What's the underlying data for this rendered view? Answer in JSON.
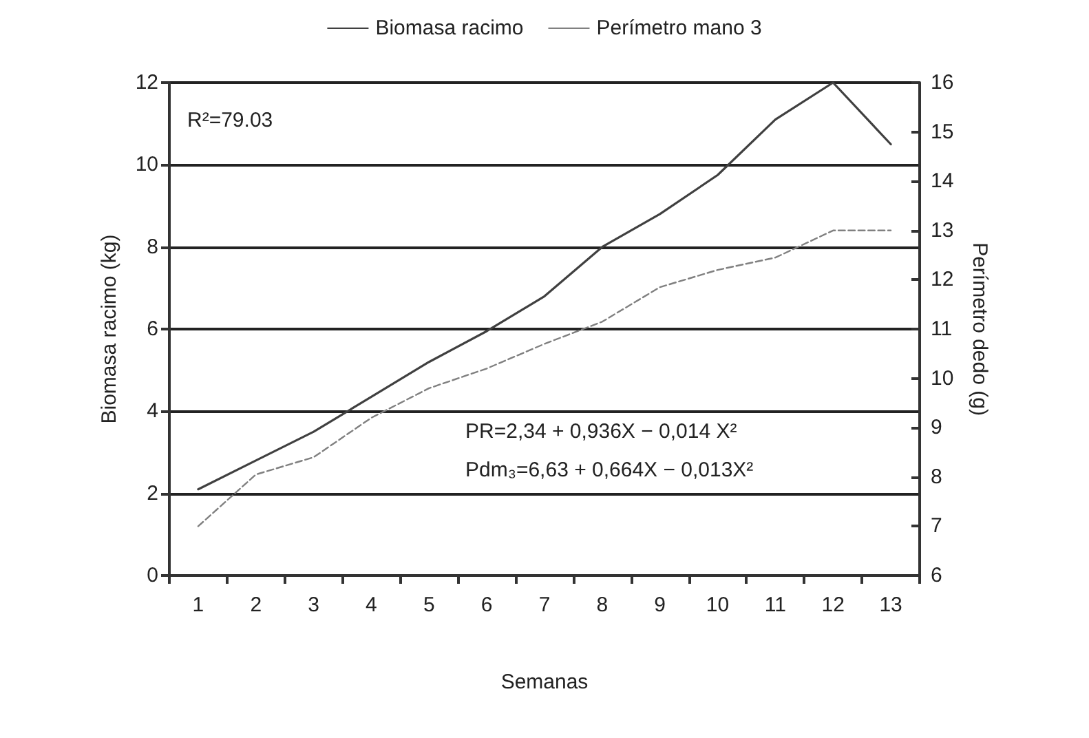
{
  "chart_data": {
    "type": "line",
    "xlabel": "Semanas",
    "ylabel": "Biomasa racimo (kg)",
    "y2label": "Perímetro dedo (g)",
    "categories": [
      "1",
      "2",
      "3",
      "4",
      "5",
      "6",
      "7",
      "8",
      "9",
      "10",
      "11",
      "12",
      "13"
    ],
    "series": [
      {
        "name": "Biomasa racimo",
        "color": "#404040",
        "line_style": "solid",
        "values": [
          2.1,
          2.8,
          3.5,
          4.35,
          5.2,
          5.95,
          6.8,
          8.0,
          8.8,
          9.75,
          11.1,
          12.0,
          10.5
        ]
      },
      {
        "name": "Perímetro mano 3",
        "color": "#808080",
        "line_style": "dashed",
        "axis": "y2",
        "values": [
          7.0,
          8.05,
          8.4,
          9.2,
          9.8,
          10.2,
          10.7,
          11.15,
          11.85,
          12.2,
          12.45,
          13.0,
          13.0
        ]
      }
    ],
    "ylim": [
      0,
      12
    ],
    "yticks": [
      0,
      2,
      4,
      6,
      8,
      10,
      12
    ],
    "y2lim": [
      6,
      16
    ],
    "y2ticks": [
      6,
      7,
      8,
      9,
      10,
      11,
      12,
      13,
      14,
      15,
      16
    ],
    "grid": "y",
    "legend": "top",
    "marker": "none",
    "annotations": [
      "R²=79.03",
      "PR=2,34 + 0,936X − 0,014 X²",
      "Pdm₃=6,63 + 0,664X − 0,013X²"
    ]
  }
}
